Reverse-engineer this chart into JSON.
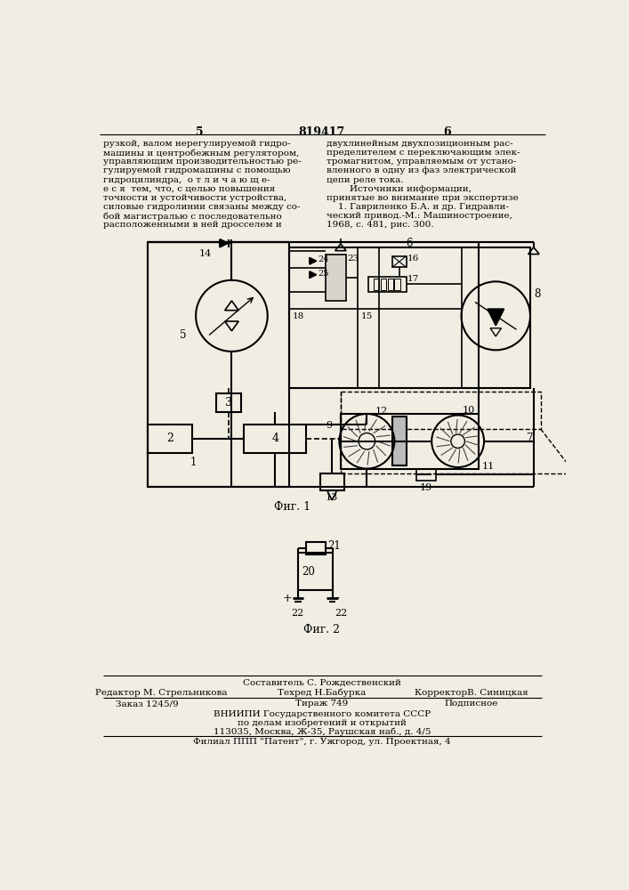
{
  "page_color": "#f0ede3",
  "top_number_left": "5",
  "top_number_center": "819417",
  "top_number_right": "6",
  "left_text_lines": [
    "рузкой, валом нерегулируемой гидро-",
    "машины и центробежным регулятором,",
    "управляющим производительностью ре-",
    "гулируемой гидромашины с помощью",
    "гидроцилиндра,  о т л и ч а ю щ е-",
    "е с я  тем, что, с целью повышения",
    "точности и устойчивости устройства,",
    "силовые гидролинии связаны между со-",
    "бой магистралью с последовательно",
    "расположенными в ней дросселем и"
  ],
  "right_text_lines": [
    "двухлинейным двухпозиционным рас-",
    "пределителем с переключающим элек-",
    "тромагнитом, управляемым от устано-",
    "вленного в одну из фаз электрической",
    "цепи реле тока.",
    "        Источники информации,",
    "принятые во внимание при экспертизе",
    "    1. Гавриленко Б.А. и др. Гидравли-",
    "ческий привод.-М.: Машиностроение,",
    "1968, с. 481, рис. 300."
  ],
  "fig1_label": "Фиг. 1",
  "fig2_label": "Фиг. 2",
  "footer_sostavitel": "Составитель С. Рождественский",
  "footer_redaktor": "Редактор М. Стрельникова",
  "footer_tekhred": "Техред Н.Бабурка",
  "footer_korrektor": "КорректорВ. Синицкая",
  "footer_zakaz": "Заказ 1245/9",
  "footer_tirazh": "Тираж 749",
  "footer_podpisnoe": "Подписное",
  "footer_vniip1": "ВНИИПИ Государственного комитета СССР",
  "footer_vniip2": "по делам изобретений и открытий",
  "footer_addr1": "113035, Москва, Ж-35, Раушская наб., д. 4/5",
  "footer_addr2": "Филиал ППП \"Патент\", г. Ужгород, ул. Проектная, 4"
}
